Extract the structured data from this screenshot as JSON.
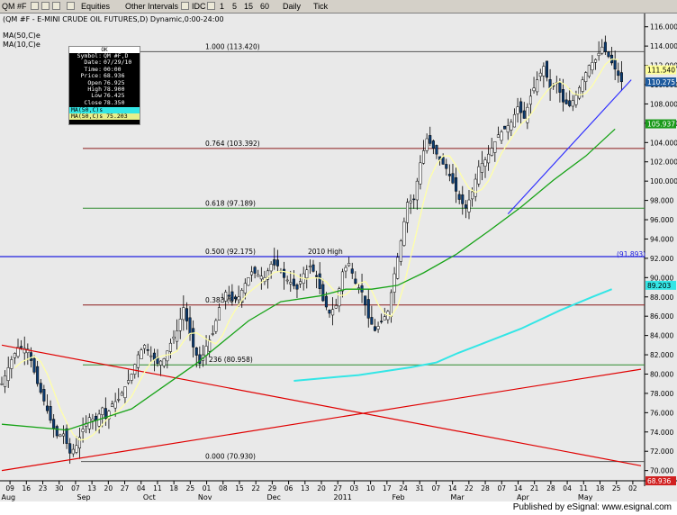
{
  "toolbar": {
    "symbol": "QM #F",
    "equities": "Equities",
    "other_intervals": "Other Intervals",
    "idc": "IDC",
    "int1": "1",
    "int5": "5",
    "int15": "15",
    "int60": "60",
    "daily": "Daily",
    "tick": "Tick"
  },
  "chart_header": {
    "title": "(QM #F - E-MINI CRUDE OIL FUTURES,D) Dynamic,0:00-24:00",
    "legend_ma50": "MA(50,C)e",
    "legend_ma10": "MA(10,C)e"
  },
  "info_box": {
    "header": "OK",
    "rows": [
      {
        "label": "Symbol:",
        "value": "QM #F,D"
      },
      {
        "label": "Date:",
        "value": "07/29/10"
      },
      {
        "label": "Time:",
        "value": "00:00"
      },
      {
        "label": "Price:",
        "value": "68.936"
      },
      {
        "label": "Open",
        "value": "76.925"
      },
      {
        "label": "High",
        "value": "78.900"
      },
      {
        "label": "Low",
        "value": "76.425"
      },
      {
        "label": "Close",
        "value": "78.350"
      }
    ],
    "ma_a": "MA(50,C)s",
    "ma_b": "MA(50,C)s 75.203"
  },
  "footer": {
    "text": "Published by eSignal: www.esignal.com"
  },
  "colors": {
    "background": "#e9e9e9",
    "up_bar": "#0b3c73",
    "down_bar": "#0b3c73",
    "ma10": "#ffffa8",
    "ma50": "#17a317",
    "ma200": "#33e6e6",
    "fib_line": "#8b1a1a",
    "fib_green": "#2e8b2e",
    "blue_hline": "#2020e0",
    "trend_red": "#e00000",
    "trend_blue": "#3030ff",
    "price_tag": "#1e5b9e"
  },
  "chart_data": {
    "type": "candlestick",
    "title": "(QM #F - E-MINI CRUDE OIL FUTURES,D) Dynamic,0:00-24:00",
    "ylim": [
      69.5,
      117.0
    ],
    "y_ticks": [
      "70.000",
      "72.000",
      "74.000",
      "76.000",
      "78.000",
      "80.000",
      "82.000",
      "84.000",
      "86.000",
      "88.000",
      "90.000",
      "92.000",
      "94.000",
      "96.000",
      "98.000",
      "100.000",
      "102.000",
      "104.000",
      "106.000",
      "108.000",
      "110.000",
      "112.000",
      "114.000",
      "116.000"
    ],
    "x_day_labels": [
      "09",
      "16",
      "23",
      "30",
      "07",
      "13",
      "20",
      "27",
      "04",
      "11",
      "18",
      "25",
      "01",
      "08",
      "15",
      "22",
      "29",
      "06",
      "13",
      "20",
      "27",
      "03",
      "10",
      "17",
      "24",
      "31",
      "07",
      "14",
      "22",
      "28",
      "07",
      "14",
      "21",
      "28",
      "04",
      "11",
      "18",
      "25",
      "02"
    ],
    "x_month_labels": [
      "Aug",
      "Sep",
      "Oct",
      "Nov",
      "Dec",
      "2011",
      "Feb",
      "Mar",
      "Apr",
      "May"
    ],
    "price_path": [
      [
        0,
        79.0
      ],
      [
        3,
        81.5
      ],
      [
        5,
        82.8
      ],
      [
        8,
        82.6
      ],
      [
        11,
        79.0
      ],
      [
        13,
        77.2
      ],
      [
        15,
        75.2
      ],
      [
        17,
        73.6
      ],
      [
        19,
        73.8
      ],
      [
        21,
        71.8
      ],
      [
        23,
        72.6
      ],
      [
        25,
        74.3
      ],
      [
        27,
        75.5
      ],
      [
        29,
        75.2
      ],
      [
        31,
        76.5
      ],
      [
        32,
        75.4
      ],
      [
        34,
        76.9
      ],
      [
        36,
        77.4
      ],
      [
        38,
        78.7
      ],
      [
        40,
        80.0
      ],
      [
        42,
        82.0
      ],
      [
        44,
        83.0
      ],
      [
        46,
        81.9
      ],
      [
        48,
        81.1
      ],
      [
        50,
        81.6
      ],
      [
        52,
        83.2
      ],
      [
        54,
        84.5
      ],
      [
        56,
        86.9
      ],
      [
        57,
        85.5
      ],
      [
        59,
        82.8
      ],
      [
        61,
        81.1
      ],
      [
        63,
        82.9
      ],
      [
        65,
        84.2
      ],
      [
        67,
        86.9
      ],
      [
        69,
        88.5
      ],
      [
        71,
        87.6
      ],
      [
        73,
        88.0
      ],
      [
        75,
        89.4
      ],
      [
        77,
        90.6
      ],
      [
        79,
        90.3
      ],
      [
        81,
        90.0
      ],
      [
        83,
        91.4
      ],
      [
        85,
        91.2
      ],
      [
        87,
        90.0
      ],
      [
        89,
        89.5
      ],
      [
        91,
        88.8
      ],
      [
        93,
        90.4
      ],
      [
        95,
        91.2
      ],
      [
        97,
        90.1
      ],
      [
        99,
        87.6
      ],
      [
        101,
        86.3
      ],
      [
        103,
        87.1
      ],
      [
        105,
        90.6
      ],
      [
        107,
        91.5
      ],
      [
        109,
        89.4
      ],
      [
        111,
        88.5
      ],
      [
        113,
        85.8
      ],
      [
        115,
        84.5
      ],
      [
        117,
        85.4
      ],
      [
        119,
        86.5
      ],
      [
        121,
        90.4
      ],
      [
        123,
        93.8
      ],
      [
        125,
        97.8
      ],
      [
        127,
        98.1
      ],
      [
        129,
        101.9
      ],
      [
        131,
        104.4
      ],
      [
        133,
        103.4
      ],
      [
        135,
        102.2
      ],
      [
        137,
        101.3
      ],
      [
        139,
        99.8
      ],
      [
        141,
        98.1
      ],
      [
        143,
        97.2
      ],
      [
        145,
        98.9
      ],
      [
        147,
        101.5
      ],
      [
        149,
        102.2
      ],
      [
        151,
        103.4
      ],
      [
        153,
        104.8
      ],
      [
        155,
        105.4
      ],
      [
        157,
        106.1
      ],
      [
        159,
        107.7
      ],
      [
        161,
        106.5
      ],
      [
        163,
        108.8
      ],
      [
        165,
        110.5
      ],
      [
        167,
        111.9
      ],
      [
        169,
        109.6
      ],
      [
        171,
        110.2
      ],
      [
        173,
        108.2
      ],
      [
        175,
        107.8
      ],
      [
        177,
        108.9
      ],
      [
        179,
        110.5
      ],
      [
        181,
        112.0
      ],
      [
        183,
        112.6
      ],
      [
        185,
        113.9
      ],
      [
        187,
        112.9
      ],
      [
        189,
        111.6
      ],
      [
        191,
        110.3
      ]
    ],
    "price_box": [
      [
        0.0,
        50.0
      ]
    ],
    "ma50": [
      [
        0,
        74.8
      ],
      [
        20,
        74.2
      ],
      [
        40,
        76.4
      ],
      [
        60,
        81.1
      ],
      [
        76,
        85.5
      ],
      [
        86,
        87.5
      ],
      [
        98,
        88.1
      ],
      [
        106,
        88.8
      ],
      [
        114,
        88.8
      ],
      [
        122,
        89.2
      ],
      [
        130,
        90.5
      ],
      [
        140,
        92.4
      ],
      [
        150,
        94.8
      ],
      [
        160,
        97.3
      ],
      [
        170,
        100.1
      ],
      [
        180,
        102.6
      ],
      [
        189,
        105.4
      ]
    ],
    "ma200": [
      [
        90,
        79.3
      ],
      [
        110,
        79.9
      ],
      [
        126,
        80.7
      ],
      [
        134,
        81.2
      ],
      [
        140,
        82.1
      ],
      [
        150,
        83.4
      ],
      [
        160,
        84.7
      ],
      [
        172,
        86.6
      ],
      [
        182,
        88.0
      ],
      [
        188,
        88.8
      ]
    ],
    "trendlines": [
      {
        "color": "red",
        "from": [
          0,
          83.0
        ],
        "to": [
          197,
          70.5
        ]
      },
      {
        "color": "red",
        "from": [
          0,
          70.0
        ],
        "to": [
          197,
          80.5
        ]
      },
      {
        "color": "blue",
        "from": [
          156,
          96.6
        ],
        "to": [
          194,
          110.5
        ]
      }
    ],
    "fib_levels": [
      {
        "label": "1.000 (113.420)",
        "value": 113.42
      },
      {
        "label": "0.764 (103.392)",
        "value": 103.392
      },
      {
        "label": "0.618 (97.189)",
        "value": 97.189
      },
      {
        "label": "0.500 (92.175)",
        "value": 92.175
      },
      {
        "label": "0.382 (87.1",
        "value": 87.16
      },
      {
        "label": "236 (80.958)",
        "value": 80.958
      },
      {
        "label": "0.000 (70.930)",
        "value": 70.93
      }
    ],
    "annotations": [
      {
        "text": "2010 High",
        "value": 92.175
      },
      {
        "text": "(91.893)",
        "value": 91.893
      }
    ],
    "right_axis_tags": [
      {
        "text": "111.540",
        "value": 111.54
      },
      {
        "text": "110.275",
        "value": 110.275
      },
      {
        "text": "105.937",
        "value": 105.937
      },
      {
        "text": "89.203",
        "value": 89.203
      },
      {
        "text": "68.936",
        "value": 68.936
      }
    ]
  }
}
